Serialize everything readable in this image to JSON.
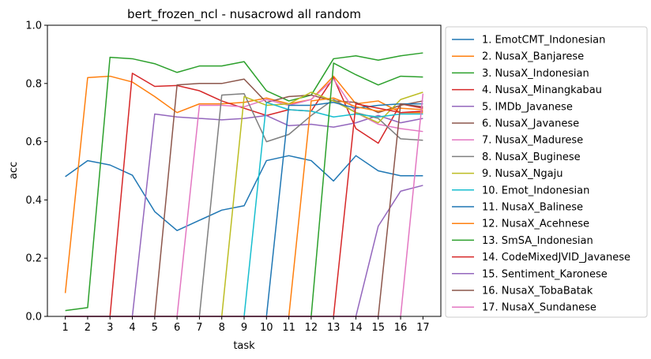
{
  "chart_data": {
    "type": "line",
    "title": "bert_frozen_ncl - nusacrowd all random",
    "xlabel": "task",
    "ylabel": "acc",
    "x": [
      1,
      2,
      3,
      4,
      5,
      6,
      7,
      8,
      9,
      10,
      11,
      12,
      13,
      14,
      15,
      16,
      17
    ],
    "xlim": [
      0.2,
      17.8
    ],
    "ylim": [
      0.0,
      1.0
    ],
    "yticks": [
      0.0,
      0.2,
      0.4,
      0.6,
      0.8,
      1.0
    ],
    "yticklabels": [
      "0.0",
      "0.2",
      "0.4",
      "0.6",
      "0.8",
      "1.0"
    ],
    "grid": false,
    "legend_position": "outside-right",
    "series": [
      {
        "name": "1. EmotCMT_Indonesian",
        "color": "#1f77b4",
        "values": [
          0.48,
          0.535,
          0.52,
          0.485,
          0.36,
          0.295,
          0.33,
          0.365,
          0.38,
          0.535,
          0.552,
          0.535,
          0.465,
          0.552,
          0.5,
          0.483,
          0.483
        ]
      },
      {
        "name": "2. NusaX_Banjarese",
        "color": "#ff7f0e",
        "values": [
          0.08,
          0.82,
          0.825,
          0.805,
          0.755,
          0.7,
          0.73,
          0.73,
          0.735,
          0.75,
          0.73,
          0.745,
          0.825,
          0.73,
          0.74,
          0.7,
          0.7
        ]
      },
      {
        "name": "3. NusaX_Indonesian",
        "color": "#2ca02c",
        "values": [
          0.02,
          0.03,
          0.89,
          0.885,
          0.868,
          0.838,
          0.86,
          0.86,
          0.875,
          0.775,
          0.74,
          0.76,
          0.885,
          0.895,
          0.88,
          0.895,
          0.905
        ]
      },
      {
        "name": "4. NusaX_Minangkabau",
        "color": "#d62728",
        "values": [
          0.0,
          0.0,
          0.0,
          0.835,
          0.79,
          0.793,
          0.775,
          0.74,
          0.715,
          0.69,
          0.71,
          0.705,
          0.82,
          0.645,
          0.595,
          0.73,
          0.715
        ]
      },
      {
        "name": "5. IMDb_Javanese",
        "color": "#9467bd",
        "values": [
          0.0,
          0.0,
          0.0,
          0.0,
          0.695,
          0.685,
          0.68,
          0.675,
          0.68,
          0.69,
          0.655,
          0.66,
          0.65,
          0.665,
          0.69,
          0.665,
          0.68
        ]
      },
      {
        "name": "6. NusaX_Javanese",
        "color": "#8c564b",
        "values": [
          0.0,
          0.0,
          0.0,
          0.0,
          0.0,
          0.795,
          0.8,
          0.8,
          0.815,
          0.735,
          0.755,
          0.76,
          0.74,
          0.735,
          0.7,
          0.725,
          0.74
        ]
      },
      {
        "name": "7. NusaX_Madurese",
        "color": "#e377c2",
        "values": [
          0.0,
          0.0,
          0.0,
          0.0,
          0.0,
          0.0,
          0.725,
          0.725,
          0.72,
          0.745,
          0.725,
          0.745,
          0.815,
          0.7,
          0.66,
          0.645,
          0.635
        ]
      },
      {
        "name": "8. NusaX_Buginese",
        "color": "#7f7f7f",
        "values": [
          0.0,
          0.0,
          0.0,
          0.0,
          0.0,
          0.0,
          0.0,
          0.76,
          0.765,
          0.6,
          0.625,
          0.69,
          0.745,
          0.7,
          0.68,
          0.61,
          0.605
        ]
      },
      {
        "name": "9. NusaX_Ngaju",
        "color": "#bcbd22",
        "values": [
          0.0,
          0.0,
          0.0,
          0.0,
          0.0,
          0.0,
          0.0,
          0.0,
          0.755,
          0.725,
          0.73,
          0.77,
          0.74,
          0.7,
          0.665,
          0.745,
          0.77
        ]
      },
      {
        "name": "10. Emot_Indonesian",
        "color": "#17becf",
        "values": [
          0.0,
          0.0,
          0.0,
          0.0,
          0.0,
          0.0,
          0.0,
          0.0,
          0.0,
          0.735,
          0.71,
          0.705,
          0.685,
          0.695,
          0.685,
          0.695,
          0.695
        ]
      },
      {
        "name": "11. NusaX_Balinese",
        "color": "#1f77b4",
        "values": [
          0.0,
          0.0,
          0.0,
          0.0,
          0.0,
          0.0,
          0.0,
          0.0,
          0.0,
          0.0,
          0.725,
          0.725,
          0.735,
          0.715,
          0.725,
          0.73,
          0.73
        ]
      },
      {
        "name": "12. NusaX_Acehnese",
        "color": "#ff7f0e",
        "values": [
          0.0,
          0.0,
          0.0,
          0.0,
          0.0,
          0.0,
          0.0,
          0.0,
          0.0,
          0.0,
          0.0,
          0.74,
          0.75,
          0.72,
          0.705,
          0.715,
          0.71
        ]
      },
      {
        "name": "13. SmSA_Indonesian",
        "color": "#2ca02c",
        "values": [
          0.0,
          0.0,
          0.0,
          0.0,
          0.0,
          0.0,
          0.0,
          0.0,
          0.0,
          0.0,
          0.0,
          0.0,
          0.87,
          0.83,
          0.795,
          0.825,
          0.822
        ]
      },
      {
        "name": "14. CodeMixedJVID_Javanese",
        "color": "#d62728",
        "values": [
          0.0,
          0.0,
          0.0,
          0.0,
          0.0,
          0.0,
          0.0,
          0.0,
          0.0,
          0.0,
          0.0,
          0.0,
          0.0,
          0.73,
          0.715,
          0.7,
          0.705
        ]
      },
      {
        "name": "15. Sentiment_Karonese",
        "color": "#9467bd",
        "values": [
          0.0,
          0.0,
          0.0,
          0.0,
          0.0,
          0.0,
          0.0,
          0.0,
          0.0,
          0.0,
          0.0,
          0.0,
          0.0,
          0.0,
          0.31,
          0.43,
          0.45
        ]
      },
      {
        "name": "16. NusaX_TobaBatak",
        "color": "#8c564b",
        "values": [
          0.0,
          0.0,
          0.0,
          0.0,
          0.0,
          0.0,
          0.0,
          0.0,
          0.0,
          0.0,
          0.0,
          0.0,
          0.0,
          0.0,
          0.0,
          0.73,
          0.72
        ]
      },
      {
        "name": "17. NusaX_Sundanese",
        "color": "#e377c2",
        "values": [
          0.0,
          0.0,
          0.0,
          0.0,
          0.0,
          0.0,
          0.0,
          0.0,
          0.0,
          0.0,
          0.0,
          0.0,
          0.0,
          0.0,
          0.0,
          0.0,
          0.765
        ]
      }
    ]
  }
}
